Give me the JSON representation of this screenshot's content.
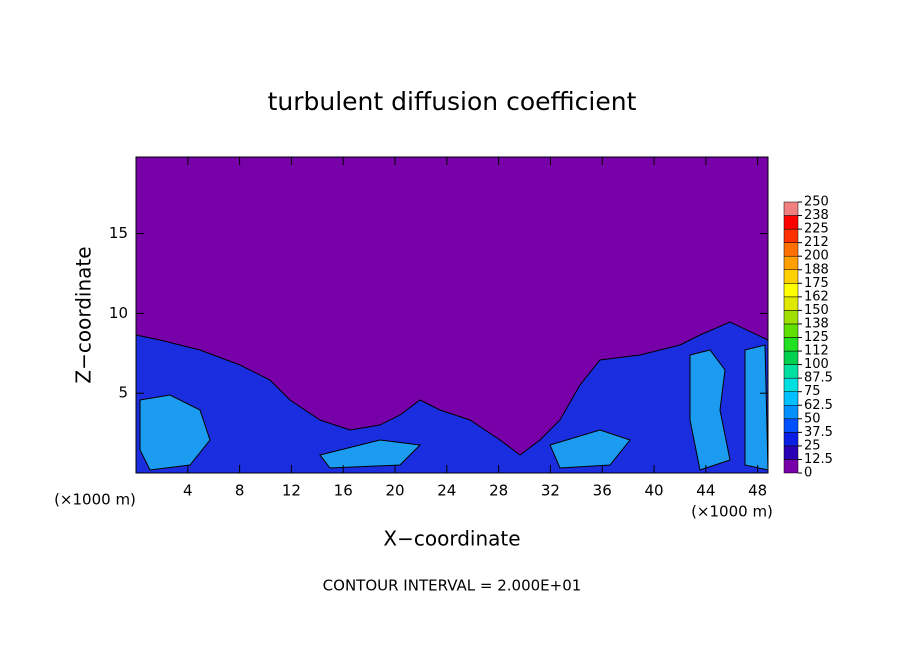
{
  "chart_data": {
    "type": "contour",
    "title": "turbulent diffusion coefficient",
    "xlabel": "X−coordinate",
    "ylabel": "Z−coordinate",
    "x_unit_left": "(×1000 m)",
    "x_unit_right": "(×1000 m)",
    "footnote": "CONTOUR INTERVAL = 2.000E+01",
    "xlim": [
      0,
      48.8
    ],
    "xticks": [
      4,
      8,
      12,
      16,
      20,
      24,
      28,
      32,
      36,
      40,
      44,
      48
    ],
    "ylim": [
      0,
      19.8
    ],
    "yticks": [
      5,
      10,
      15
    ],
    "colorbar": {
      "ticks": [
        0,
        12.5,
        25,
        37.5,
        50,
        62.5,
        75,
        87.5,
        100,
        {
          "value": 112.5,
          "label": "112"
        },
        125,
        {
          "value": 137.5,
          "label": "138"
        },
        150,
        {
          "value": 162.5,
          "label": "162"
        },
        175,
        {
          "value": 187.5,
          "label": "188"
        },
        200,
        {
          "value": 212.5,
          "label": "212"
        },
        225,
        {
          "value": 237.5,
          "label": "238"
        },
        250
      ],
      "colors": [
        "#7800a8",
        "#2a00b4",
        "#0a1ee6",
        "#0050ff",
        "#0090ff",
        "#00c0ff",
        "#00e0e0",
        "#00e0a0",
        "#00d050",
        "#20e020",
        "#60e000",
        "#a0e000",
        "#e0e800",
        "#ffff00",
        "#ffd000",
        "#ffa000",
        "#ff7000",
        "#ff3000",
        "#ff0000",
        "#f08080"
      ]
    }
  }
}
